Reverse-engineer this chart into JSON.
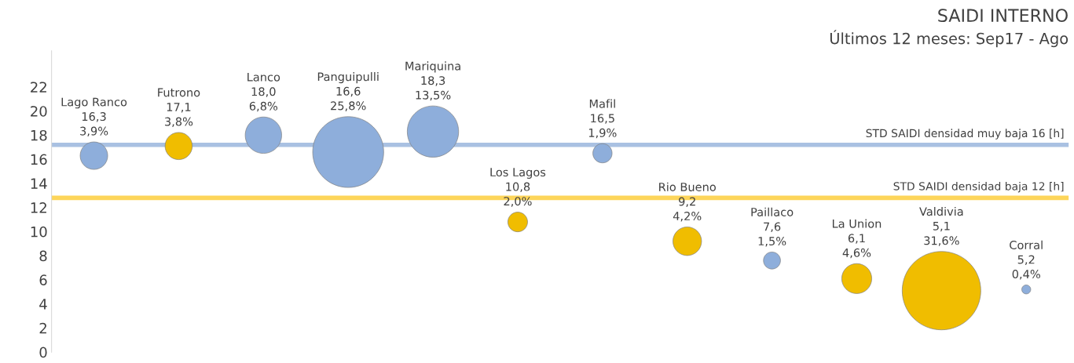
{
  "chart_data": {
    "type": "bubble",
    "title": "SAIDI INTERNO",
    "subtitle": "Últimos 12 meses: Sep17 - Ago",
    "categories": [
      null,
      null,
      null,
      null,
      null,
      null,
      null,
      null,
      null,
      null,
      null,
      null
    ],
    "values": [
      16.3,
      17.1,
      18.0,
      16.6,
      18.3,
      10.8,
      16.5,
      9.2,
      7.6,
      6.1,
      5.1,
      5.2
    ],
    "sizes": [
      0.123,
      0.12,
      0.215,
      0.816,
      0.427,
      0.063,
      0.06,
      0.133,
      0.047,
      0.146,
      1,
      0.013
    ],
    "colors": [
      "#8eaedb",
      "#f0bd00",
      "#8eaedb",
      "#8eaedb",
      "#8eaedb",
      "#f0bd00",
      "#8eaedb",
      "#f0bd00",
      "#8eaedb",
      "#f0bd00",
      "#f0bd00",
      "#8eaedb"
    ],
    "value_labels": [
      "Lago Ranco\n16,3\n3,9%",
      "Futrono\n17,1\n3,8%",
      "Lanco\n18,0\n6,8%",
      "Panguipulli\n16,6\n25,8%",
      "Mariquina\n18,3\n13,5%",
      "Los Lagos\n10,8\n2,0%",
      "Mafil\n16,5\n1,9%",
      "Rio Bueno\n9,2\n4,2%",
      "Paillaco\n7,6\n1,5%",
      "La Union\n6,1\n4,6%",
      "Valdivia\n5,1\n31,6%",
      "Corral\n5,2\n0,4%"
    ],
    "ylim": [
      0,
      25
    ],
    "yticks": [
      0,
      2,
      4,
      6,
      8,
      10,
      12,
      14,
      16,
      18,
      20,
      22
    ],
    "ref_lines": [
      {
        "axis": "y",
        "value": 17.2,
        "label": "STD SAIDI densidad muy baja 16 [h]",
        "color": "#a9c1e2"
      },
      {
        "axis": "y",
        "value": 12.8,
        "label": "STD SAIDI densidad baja 12 [h]",
        "color": "#fdd55a"
      }
    ],
    "grid": false,
    "legend": false
  }
}
